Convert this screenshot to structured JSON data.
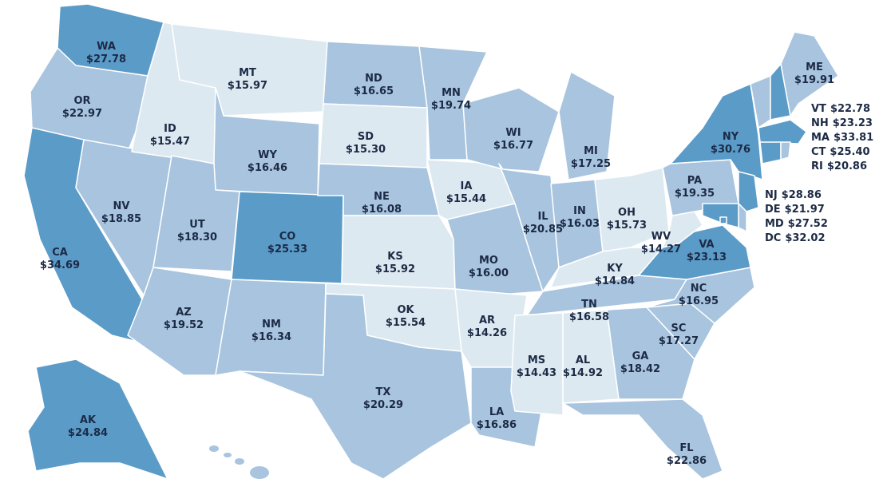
{
  "chart_data": {
    "type": "choropleth",
    "categories": [
      "WA",
      "OR",
      "CA",
      "NV",
      "ID",
      "MT",
      "WY",
      "UT",
      "CO",
      "AZ",
      "NM",
      "ND",
      "SD",
      "NE",
      "KS",
      "OK",
      "TX",
      "MN",
      "IA",
      "MO",
      "AR",
      "LA",
      "WI",
      "IL",
      "MI",
      "IN",
      "OH",
      "KY",
      "TN",
      "MS",
      "AL",
      "GA",
      "FL",
      "SC",
      "NC",
      "VA",
      "WV",
      "PA",
      "NY",
      "VT",
      "NH",
      "ME",
      "MA",
      "CT",
      "RI",
      "NJ",
      "DE",
      "MD",
      "DC",
      "AK"
    ],
    "values": [
      27.78,
      22.97,
      34.69,
      18.85,
      15.47,
      15.97,
      16.46,
      18.3,
      25.33,
      19.52,
      16.34,
      16.65,
      15.3,
      16.08,
      15.92,
      15.54,
      20.29,
      19.74,
      15.44,
      16.0,
      14.26,
      16.86,
      16.77,
      20.85,
      17.25,
      16.03,
      15.73,
      14.84,
      16.58,
      14.43,
      14.92,
      18.42,
      22.86,
      17.27,
      16.95,
      23.13,
      14.27,
      19.35,
      30.76,
      22.78,
      23.23,
      19.91,
      33.81,
      25.4,
      20.86,
      28.86,
      21.97,
      27.52,
      32.02,
      24.84
    ],
    "value_labels": [
      "$27.78",
      "$22.97",
      "$34.69",
      "$18.85",
      "$15.47",
      "$15.97",
      "$16.46",
      "$18.30",
      "$25.33",
      "$19.52",
      "$16.34",
      "$16.65",
      "$15.30",
      "$16.08",
      "$15.92",
      "$15.54",
      "$20.29",
      "$19.74",
      "$15.44",
      "$16.00",
      "$14.26",
      "$16.86",
      "$16.77",
      "$20.85",
      "$17.25",
      "$16.03",
      "$15.73",
      "$14.84",
      "$16.58",
      "$14.43",
      "$14.92",
      "$18.42",
      "$22.86",
      "$17.27",
      "$16.95",
      "$23.13",
      "$14.27",
      "$19.35",
      "$30.76",
      "$22.78",
      "$23.23",
      "$19.91",
      "$33.81",
      "$25.40",
      "$20.86",
      "$28.86",
      "$21.97",
      "$27.52",
      "$32.02",
      "$24.84"
    ],
    "colors": [
      "#5b9bc8",
      "#a8c4de",
      "#5b9bc8",
      "#a8c4de",
      "#dde9f1",
      "#dde9f1",
      "#a8c4de",
      "#a8c4de",
      "#5b9bc8",
      "#a8c4de",
      "#a8c4de",
      "#a8c4de",
      "#dde9f1",
      "#a8c4de",
      "#dde9f1",
      "#dde9f1",
      "#a8c4de",
      "#a8c4de",
      "#dde9f1",
      "#a8c4de",
      "#dde9f1",
      "#a8c4de",
      "#a8c4de",
      "#a8c4de",
      "#a8c4de",
      "#a8c4de",
      "#dde9f1",
      "#dde9f1",
      "#a8c4de",
      "#dde9f1",
      "#dde9f1",
      "#a8c4de",
      "#a8c4de",
      "#a8c4de",
      "#a8c4de",
      "#5b9bc8",
      "#dde9f1",
      "#a8c4de",
      "#5b9bc8",
      "#a8c4de",
      "#5b9bc8",
      "#a8c4de",
      "#5b9bc8",
      "#5b9bc8",
      "#a8c4de",
      "#5b9bc8",
      "#a8c4de",
      "#5b9bc8",
      "#5b9bc8",
      "#5b9bc8"
    ]
  }
}
